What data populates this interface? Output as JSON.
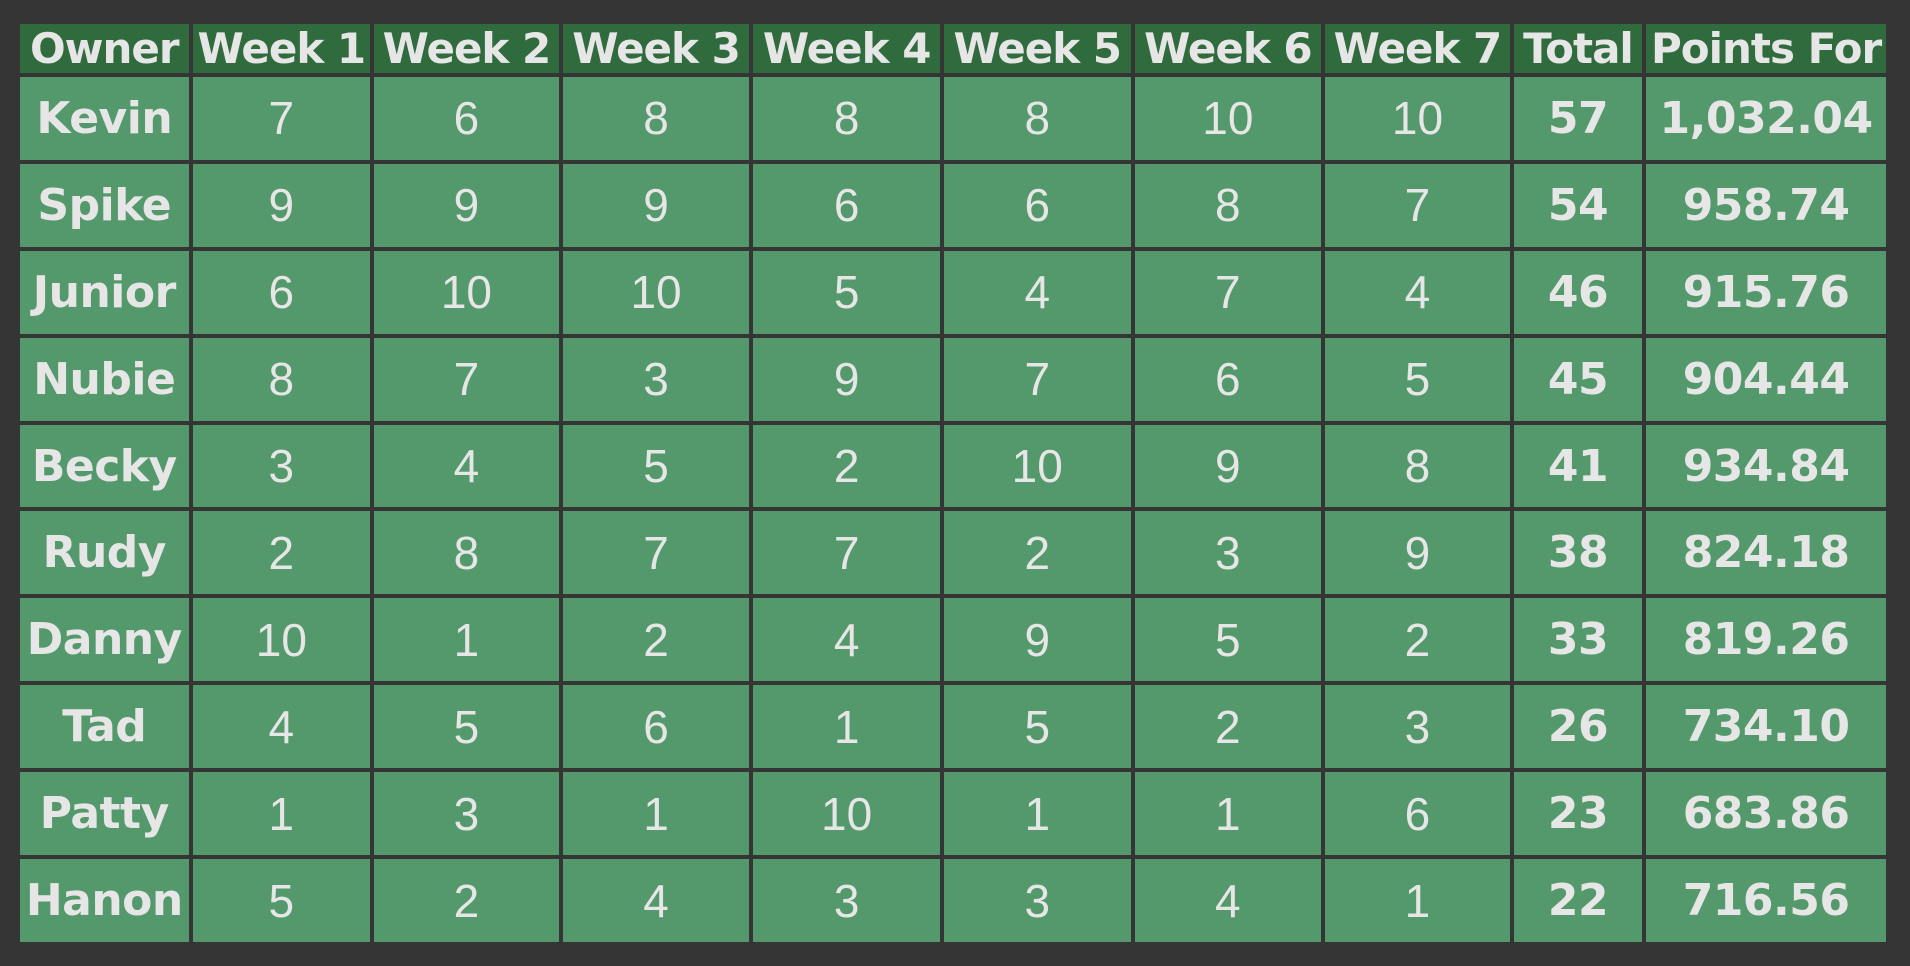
{
  "chart_data": {
    "type": "table",
    "columns": [
      "Owner",
      "Week 1",
      "Week 2",
      "Week 3",
      "Week 4",
      "Week 5",
      "Week 6",
      "Week 7",
      "Total",
      "Points For"
    ],
    "rows": [
      [
        "Kevin",
        "7",
        "6",
        "8",
        "8",
        "8",
        "10",
        "10",
        "57",
        "1,032.04"
      ],
      [
        "Spike",
        "9",
        "9",
        "9",
        "6",
        "6",
        "8",
        "7",
        "54",
        "958.74"
      ],
      [
        "Junior",
        "6",
        "10",
        "10",
        "5",
        "4",
        "7",
        "4",
        "46",
        "915.76"
      ],
      [
        "Nubie",
        "8",
        "7",
        "3",
        "9",
        "7",
        "6",
        "5",
        "45",
        "904.44"
      ],
      [
        "Becky",
        "3",
        "4",
        "5",
        "2",
        "10",
        "9",
        "8",
        "41",
        "934.84"
      ],
      [
        "Rudy",
        "2",
        "8",
        "7",
        "7",
        "2",
        "3",
        "9",
        "38",
        "824.18"
      ],
      [
        "Danny",
        "10",
        "1",
        "2",
        "4",
        "9",
        "5",
        "2",
        "33",
        "819.26"
      ],
      [
        "Tad",
        "4",
        "5",
        "6",
        "1",
        "5",
        "2",
        "3",
        "26",
        "734.10"
      ],
      [
        "Patty",
        "1",
        "3",
        "1",
        "10",
        "1",
        "1",
        "6",
        "23",
        "683.86"
      ],
      [
        "Hanon",
        "5",
        "2",
        "4",
        "3",
        "3",
        "4",
        "1",
        "22",
        "716.56"
      ]
    ]
  },
  "colors": {
    "background": "#353535",
    "header_fill": "#2f6b3c",
    "cell_fill": "#54996b",
    "text": "#e6e6e6"
  }
}
